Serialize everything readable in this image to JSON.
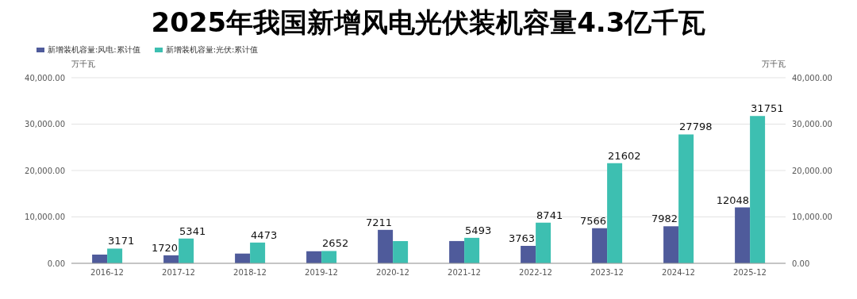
{
  "chart_data": {
    "type": "bar",
    "title": "2025年我国新增风电光伏装机容量4.3亿千瓦",
    "categories": [
      "2016-12",
      "2017-12",
      "2018-12",
      "2019-12",
      "2020-12",
      "2021-12",
      "2022-12",
      "2023-12",
      "2024-12",
      "2025-12"
    ],
    "series": [
      {
        "name": "新增装机容量:风电:累计值",
        "color": "#4f5b9b",
        "values": [
          1900,
          1720,
          2100,
          2600,
          7211,
          4800,
          3763,
          7566,
          7982,
          12048
        ],
        "value_labels": [
          null,
          "1720",
          null,
          null,
          "7211",
          null,
          "3763",
          "7566",
          "7982",
          "12048"
        ]
      },
      {
        "name": "新增装机容量:光伏:累计值",
        "color": "#3dbfb1",
        "values": [
          3171,
          5341,
          4473,
          2652,
          4800,
          5493,
          8741,
          21602,
          27798,
          31751
        ],
        "value_labels": [
          "3171",
          "5341",
          "4473",
          "2652",
          null,
          "5493",
          "8741",
          "21602",
          "27798",
          "31751"
        ]
      }
    ],
    "ylabel": "万千瓦",
    "y2label": "万千瓦",
    "ylim": [
      0,
      40000
    ],
    "yticks": [
      {
        "value": 0,
        "label": "0.00"
      },
      {
        "value": 10000,
        "label": "10,000.00"
      },
      {
        "value": 20000,
        "label": "20,000.00"
      },
      {
        "value": 30000,
        "label": "30,000.00"
      },
      {
        "value": 40000,
        "label": "40,000.00"
      }
    ],
    "y2lim": [
      0,
      40000
    ],
    "y2ticks": [
      {
        "value": 0,
        "label": "0.00"
      },
      {
        "value": 10000,
        "label": "10,000.00"
      },
      {
        "value": 20000,
        "label": "20,000.00"
      },
      {
        "value": 30000,
        "label": "30,000.00"
      },
      {
        "value": 40000,
        "label": "40,000.00"
      }
    ],
    "grid": "y",
    "legend": "top left"
  }
}
